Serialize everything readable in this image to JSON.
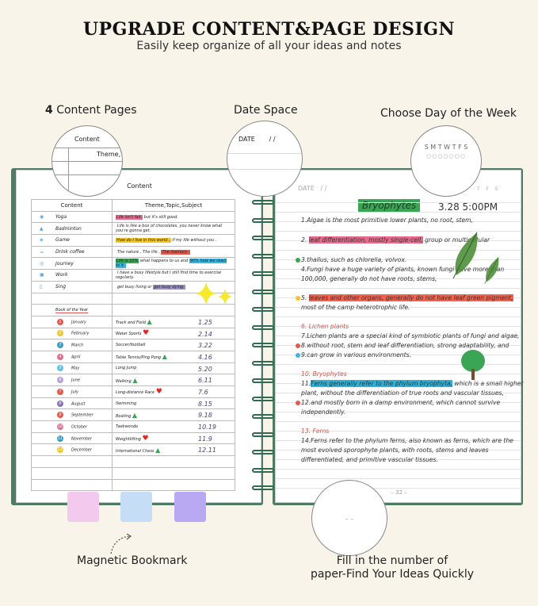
{
  "header": {
    "title": "UPGRADE CONTENT&PAGE DESIGN",
    "subtitle": "Easily keep organize of all your ideas and notes"
  },
  "callouts": {
    "content_pages_num": "4",
    "content_pages": " Content Pages",
    "date_space": "Date Space",
    "day_of_week": "Choose Day of the Week",
    "bookmark": "Magnetic Bookmark",
    "page_number_line1": "Fill in the number of",
    "page_number_line2": "paper-Find Your Ideas Quickly"
  },
  "magnifiers": {
    "content_label": "Content",
    "theme_label": "Theme,T",
    "date_label": "DATE",
    "date_slashes": "/    /",
    "weekdays": "S M T W T F S",
    "page_dashes": "–   –"
  },
  "left_page": {
    "title": "Content",
    "col_content": "Content",
    "col_theme": "Theme,Topic,Subject",
    "content_rows": [
      {
        "icon": "yoga-icon",
        "label": "Yoga",
        "hl": "Life isn't fair,",
        "hl_color": "#e86a8c",
        "rest": " but it's still good.",
        "hl2": "",
        "hl2_color": ""
      },
      {
        "icon": "badminton-icon",
        "label": "Badminton",
        "hl": "",
        "hl_color": "",
        "rest": "Life is like a box of chocolates, you never know what you're gonna get.",
        "hl2": "",
        "hl2_color": ""
      },
      {
        "icon": "game-icon",
        "label": "Game",
        "hl": "How do I live in this world ,",
        "hl_color": "#f3c623",
        "rest": " if my life without you .",
        "hl2": "",
        "hl2_color": ""
      },
      {
        "icon": "coffee-icon",
        "label": "Drink coffee",
        "hl": "",
        "hl_color": "",
        "rest": "The nature , The life , ",
        "hl2": "The memory .",
        "hl2_color": "#e8574a"
      },
      {
        "icon": "journey-icon",
        "label": "Journey",
        "hl": "Life is 10%",
        "hl_color": "#3aa655",
        "rest": " what happens to us and ",
        "hl2": "90% how we react to it.",
        "hl2_color": "#3cb8e0"
      },
      {
        "icon": "work-icon",
        "label": "Work",
        "hl": "",
        "hl_color": "",
        "rest": "I have a busy lifestyle but I still find time to exercise regularly.",
        "hl2": "",
        "hl2_color": ""
      },
      {
        "icon": "sing-icon",
        "label": "Sing",
        "hl": "",
        "hl_color": "",
        "rest": "get busy living or ",
        "hl2": "get busy dying.",
        "hl2_color": "#9b8ec4"
      }
    ],
    "book_of_year": "Book of the Year",
    "months": [
      {
        "n": "1",
        "color": "#e8574a",
        "month": "January",
        "sport": "Track and Field",
        "mark": "triangle",
        "date": "1.25"
      },
      {
        "n": "2",
        "color": "#f3c623",
        "month": "February",
        "sport": "Water Sports",
        "mark": "heart",
        "date": "2.14"
      },
      {
        "n": "3",
        "color": "#3a9bc8",
        "month": "March",
        "sport": "Soccer/football",
        "mark": "",
        "date": "3.22"
      },
      {
        "n": "4",
        "color": "#e86a8c",
        "month": "April",
        "sport": "Table Tennis/Ping Pong",
        "mark": "triangle",
        "date": "4.16"
      },
      {
        "n": "5",
        "color": "#5cc0e8",
        "month": "May",
        "sport": "Long Jump",
        "mark": "",
        "date": "5.20"
      },
      {
        "n": "6",
        "color": "#b3a0d6",
        "month": "June",
        "sport": "Walking",
        "mark": "triangle",
        "date": "6.11"
      },
      {
        "n": "7",
        "color": "#e8574a",
        "month": "July",
        "sport": "Long-distance Race",
        "mark": "heart",
        "date": "7.6"
      },
      {
        "n": "8",
        "color": "#8a72b8",
        "month": "August",
        "sport": "Swimming",
        "mark": "",
        "date": "8.15"
      },
      {
        "n": "9",
        "color": "#e8574a",
        "month": "September",
        "sport": "Boating",
        "mark": "triangle",
        "date": "9.18"
      },
      {
        "n": "10",
        "color": "#e86a8c",
        "month": "October",
        "sport": "Taekwondo",
        "mark": "",
        "date": "10.19"
      },
      {
        "n": "11",
        "color": "#3a9bc8",
        "month": "November",
        "sport": "Weightlifting",
        "mark": "heart",
        "date": "11.9"
      },
      {
        "n": "12",
        "color": "#f3c623",
        "month": "December",
        "sport": "International Chess",
        "mark": "triangle",
        "date": "12.11"
      }
    ]
  },
  "right_page": {
    "date_label": "DATE",
    "date_slashes": "/    /",
    "weekdays": "T F S",
    "heading": "Bryophytes",
    "datetime": "3.28 5:00PM",
    "lines": [
      {
        "pre": "1.Algae is the most primitive lower plants, no root, stem,",
        "hl": "",
        "hl_color": "",
        "post": "",
        "red": false,
        "dot": ""
      },
      {
        "pre": "2. ",
        "hl": "leaf differentiation, mostly single-cell,",
        "hl_color": "#e86a8c",
        "post": " group or multicellular",
        "red": false,
        "dot": ""
      },
      {
        "pre": "3.thallus, such as chlorella, volvox.",
        "hl": "",
        "hl_color": "",
        "post": "",
        "red": false,
        "dot": "#3aa655"
      },
      {
        "pre": "4.Fungi have a huge variety of plants, known fungi have more than",
        "hl": "",
        "hl_color": "",
        "post": "",
        "red": false,
        "dot": ""
      },
      {
        "pre": "100,000, generally do not have roots, stems,",
        "hl": "",
        "hl_color": "",
        "post": "",
        "red": false,
        "dot": ""
      },
      {
        "pre": "5. ",
        "hl": "leaves and other organs, generally do not have leaf green pigment,",
        "hl_color": "#f06450",
        "post": "",
        "red": false,
        "dot": "#f3c623"
      },
      {
        "pre": "most of the camp heterotrophic life.",
        "hl": "",
        "hl_color": "",
        "post": "",
        "red": false,
        "dot": ""
      },
      {
        "pre": "6. Lichen plants",
        "hl": "",
        "hl_color": "",
        "post": "",
        "red": true,
        "dot": ""
      },
      {
        "pre": "7.Lichen plants are a special kind of symbiotic plants of fungi and algae,",
        "hl": "",
        "hl_color": "",
        "post": "",
        "red": false,
        "dot": ""
      },
      {
        "pre": "8.without root, stem and leaf differentiation, strong adaptability, and",
        "hl": "",
        "hl_color": "",
        "post": "",
        "red": false,
        "dot": "#e8574a"
      },
      {
        "pre": "9.can grow in various environments.",
        "hl": "",
        "hl_color": "",
        "post": "",
        "red": false,
        "dot": "#3cb8e0"
      },
      {
        "pre": "10. Bryophytes",
        "hl": "",
        "hl_color": "",
        "post": "",
        "red": true,
        "dot": ""
      },
      {
        "pre": "11.",
        "hl": "Ferns generally refer to the phylum bryophyta,",
        "hl_color": "#2fb1d6",
        "post": " which is a small higher",
        "red": false,
        "dot": ""
      },
      {
        "pre": "plant, without the differentiation of true roots and vascular tissues,",
        "hl": "",
        "hl_color": "",
        "post": "",
        "red": false,
        "dot": ""
      },
      {
        "pre": "12.and mostly born in a damp environment, which cannot survive",
        "hl": "",
        "hl_color": "",
        "post": "",
        "red": false,
        "dot": "#e8574a"
      },
      {
        "pre": "independently.",
        "hl": "",
        "hl_color": "",
        "post": "",
        "red": false,
        "dot": ""
      },
      {
        "pre": "13. Ferns",
        "hl": "",
        "hl_color": "",
        "post": "",
        "red": true,
        "dot": ""
      },
      {
        "pre": "14.Ferns refer to the phylum ferns, also known as ferns, which are the",
        "hl": "",
        "hl_color": "",
        "post": "",
        "red": false,
        "dot": ""
      },
      {
        "pre": "most evolved sporophyte plants, with roots, stems and leaves",
        "hl": "",
        "hl_color": "",
        "post": "",
        "red": false,
        "dot": ""
      },
      {
        "pre": "differentiated, and primitive vascular tissues.",
        "hl": "",
        "hl_color": "",
        "post": "",
        "red": false,
        "dot": ""
      }
    ],
    "page_number": "– 32 –"
  },
  "bookmarks": [
    {
      "color": "#f3c9ee"
    },
    {
      "color": "#c5def5"
    },
    {
      "color": "#b9a8f2"
    }
  ],
  "colors": {
    "cover": "#4f7a64",
    "ring": "#2f6b52",
    "background": "#f8f4ea"
  }
}
